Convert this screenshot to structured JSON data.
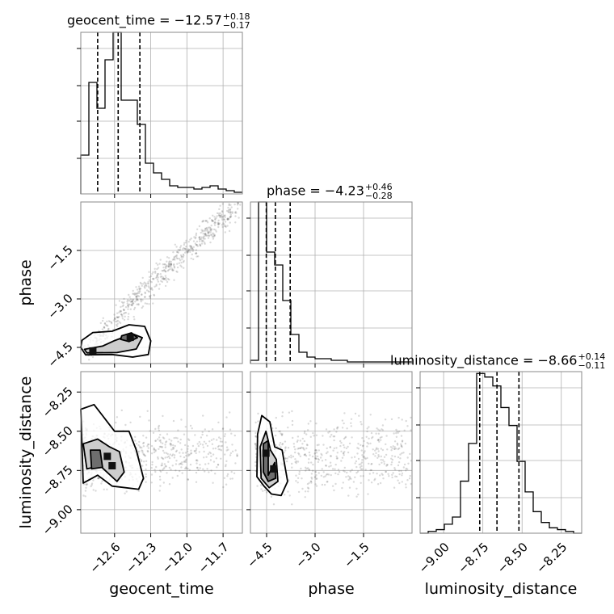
{
  "chart_data": {
    "type": "corner",
    "params": [
      {
        "name": "geocent_time",
        "title": "geocent_time = −12.57",
        "err_plus": "+0.18",
        "err_minus": "−0.17",
        "range": [
          -12.88,
          -11.54
        ],
        "ticks": [
          -12.6,
          -12.3,
          -12.0,
          -11.7
        ],
        "tick_labels": [
          "−12.6",
          "−12.3",
          "−12.0",
          "−11.7"
        ],
        "quantiles": [
          -12.74,
          -12.57,
          -12.39
        ],
        "hist_edges": [
          -12.88,
          -12.813,
          -12.746,
          -12.679,
          -12.612,
          -12.545,
          -12.478,
          -12.411,
          -12.344,
          -12.277,
          -12.21,
          -12.143,
          -12.076,
          -12.009,
          -11.942,
          -11.875,
          -11.808,
          -11.741,
          -11.674,
          -11.607,
          -11.54
        ],
        "hist_counts": [
          0.24,
          0.69,
          0.53,
          0.83,
          1.0,
          0.58,
          0.58,
          0.43,
          0.19,
          0.13,
          0.09,
          0.05,
          0.04,
          0.04,
          0.03,
          0.04,
          0.05,
          0.03,
          0.02,
          0.01
        ]
      },
      {
        "name": "phase",
        "title": "phase = −4.23",
        "err_plus": "+0.46",
        "err_minus": "−0.28",
        "range": [
          -5.0,
          0.0
        ],
        "ticks": [
          -4.5,
          -3.0,
          -1.5
        ],
        "tick_labels": [
          "−4.5",
          "−3.0",
          "−1.5"
        ],
        "quantiles": [
          -4.51,
          -4.23,
          -3.77
        ],
        "hist_edges": [
          -5.0,
          -4.75,
          -4.5,
          -4.25,
          -4.0,
          -3.75,
          -3.5,
          -3.25,
          -3.0,
          -2.75,
          -2.5,
          -2.25,
          -2.0,
          -1.75,
          -1.5,
          -1.25,
          -1.0,
          -0.75,
          -0.5,
          -0.25,
          0.0
        ],
        "hist_counts": [
          0.02,
          1.0,
          0.69,
          0.61,
          0.39,
          0.18,
          0.07,
          0.04,
          0.03,
          0.03,
          0.02,
          0.02,
          0.01,
          0.01,
          0.01,
          0.01,
          0.01,
          0.01,
          0.01,
          0.01
        ]
      },
      {
        "name": "luminosity_distance",
        "title": "luminosity_distance = −8.66",
        "err_plus": "+0.14",
        "err_minus": "−0.11",
        "range": [
          -9.15,
          -8.12
        ],
        "ticks": [
          -9.0,
          -8.75,
          -8.5,
          -8.25
        ],
        "tick_labels": [
          "−9.00",
          "−8.75",
          "−8.50",
          "−8.25"
        ],
        "quantiles": [
          -8.77,
          -8.66,
          -8.52
        ],
        "hist_edges": [
          -9.15,
          -9.0985,
          -9.047,
          -8.9955,
          -8.944,
          -8.8925,
          -8.841,
          -8.7895,
          -8.738,
          -8.6865,
          -8.635,
          -8.5835,
          -8.532,
          -8.4805,
          -8.429,
          -8.3775,
          -8.326,
          -8.2745,
          -8.223,
          -8.1715,
          -8.12
        ],
        "hist_counts": [
          0.0,
          0.01,
          0.02,
          0.05,
          0.09,
          0.29,
          0.5,
          0.89,
          0.87,
          0.82,
          0.7,
          0.6,
          0.4,
          0.23,
          0.12,
          0.06,
          0.03,
          0.02,
          0.01,
          0.0
        ],
        "hist_ymax": 0.9
      }
    ],
    "axis_labels": {
      "x": [
        "geocent_time",
        "phase",
        "luminosity_distance"
      ],
      "y": [
        "phase",
        "luminosity_distance"
      ]
    },
    "pairs": [
      {
        "x_param": "geocent_time",
        "y_param": "phase",
        "y_ticks": [
          -4.5,
          -3.0,
          -1.5
        ],
        "y_tick_labels": [
          "−4.5",
          "−3.0",
          "−1.5"
        ],
        "contour_outer": [
          [
            -12.87,
            -4.28
          ],
          [
            -12.78,
            -4.04
          ],
          [
            -12.62,
            -4.0
          ],
          [
            -12.48,
            -3.8
          ],
          [
            -12.35,
            -3.85
          ],
          [
            -12.3,
            -4.3
          ],
          [
            -12.32,
            -4.72
          ],
          [
            -12.45,
            -4.8
          ],
          [
            -12.62,
            -4.72
          ],
          [
            -12.84,
            -4.73
          ],
          [
            -12.88,
            -4.5
          ]
        ],
        "contour_mid": [
          [
            -12.85,
            -4.56
          ],
          [
            -12.7,
            -4.46
          ],
          [
            -12.6,
            -4.29
          ],
          [
            -12.45,
            -4.08
          ],
          [
            -12.37,
            -4.2
          ],
          [
            -12.42,
            -4.55
          ],
          [
            -12.58,
            -4.66
          ],
          [
            -12.83,
            -4.67
          ]
        ],
        "contour_inner": [
          [
            -12.54,
            -4.14
          ],
          [
            -12.46,
            -4.05
          ],
          [
            -12.41,
            -4.2
          ],
          [
            -12.48,
            -4.32
          ],
          [
            -12.55,
            -4.25
          ]
        ],
        "peaks": [
          [
            -12.78,
            -4.61
          ],
          [
            -12.47,
            -4.19
          ]
        ]
      },
      {
        "x_param": "geocent_time",
        "y_param": "luminosity_distance",
        "y_ticks": [
          -9.0,
          -8.75,
          -8.5,
          -8.25
        ],
        "y_tick_labels": [
          "−9.00",
          "−8.75",
          "−8.50",
          "−8.25"
        ],
        "contour_outer": [
          [
            -12.88,
            -8.36
          ],
          [
            -12.77,
            -8.33
          ],
          [
            -12.68,
            -8.42
          ],
          [
            -12.6,
            -8.5
          ],
          [
            -12.48,
            -8.5
          ],
          [
            -12.42,
            -8.62
          ],
          [
            -12.36,
            -8.8
          ],
          [
            -12.4,
            -8.87
          ],
          [
            -12.62,
            -8.85
          ],
          [
            -12.74,
            -8.78
          ],
          [
            -12.86,
            -8.83
          ]
        ],
        "contour_mid": [
          [
            -12.86,
            -8.58
          ],
          [
            -12.74,
            -8.55
          ],
          [
            -12.64,
            -8.6
          ],
          [
            -12.56,
            -8.63
          ],
          [
            -12.52,
            -8.76
          ],
          [
            -12.58,
            -8.82
          ],
          [
            -12.72,
            -8.72
          ],
          [
            -12.83,
            -8.74
          ]
        ],
        "contour_inner": [
          [
            -12.8,
            -8.62
          ],
          [
            -12.72,
            -8.62
          ],
          [
            -12.7,
            -8.73
          ],
          [
            -12.79,
            -8.74
          ]
        ],
        "peaks": [
          [
            -12.66,
            -8.66
          ],
          [
            -12.62,
            -8.72
          ]
        ]
      },
      {
        "x_param": "phase",
        "y_param": "luminosity_distance",
        "y_ticks": [
          -9.0,
          -8.75,
          -8.5,
          -8.25
        ],
        "y_tick_labels": [
          "−9.00",
          "−8.75",
          "−8.50",
          "−8.25"
        ],
        "contour_outer": [
          [
            -4.78,
            -8.52
          ],
          [
            -4.65,
            -8.4
          ],
          [
            -4.4,
            -8.44
          ],
          [
            -4.25,
            -8.6
          ],
          [
            -4.02,
            -8.62
          ],
          [
            -3.85,
            -8.82
          ],
          [
            -4.05,
            -8.91
          ],
          [
            -4.35,
            -8.9
          ],
          [
            -4.58,
            -8.85
          ],
          [
            -4.8,
            -8.79
          ]
        ],
        "contour_mid": [
          [
            -4.7,
            -8.6
          ],
          [
            -4.52,
            -8.5
          ],
          [
            -4.38,
            -8.62
          ],
          [
            -4.2,
            -8.68
          ],
          [
            -4.15,
            -8.82
          ],
          [
            -4.42,
            -8.86
          ],
          [
            -4.67,
            -8.8
          ]
        ],
        "contour_inner": [
          [
            -4.6,
            -8.58
          ],
          [
            -4.45,
            -8.56
          ],
          [
            -4.45,
            -8.78
          ],
          [
            -4.25,
            -8.7
          ],
          [
            -4.22,
            -8.8
          ],
          [
            -4.45,
            -8.82
          ],
          [
            -4.6,
            -8.76
          ]
        ],
        "peaks": [
          [
            -4.52,
            -8.64
          ],
          [
            -4.28,
            -8.74
          ]
        ]
      }
    ]
  }
}
